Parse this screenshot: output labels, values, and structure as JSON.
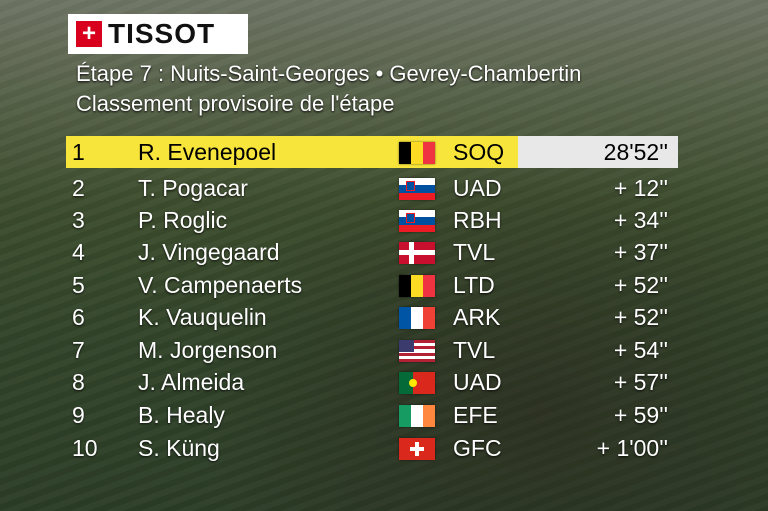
{
  "brand": {
    "logo_text": "TISSOT"
  },
  "stage": {
    "title": "Étape 7 : Nuits-Saint-Georges •  Gevrey-Chambertin",
    "subtitle": "Classement provisoire de l'étape"
  },
  "rows": [
    {
      "pos": "1",
      "name": "R. Evenepoel",
      "flag": "belgium-flag",
      "team": "SOQ",
      "time": "28'52''"
    },
    {
      "pos": "2",
      "name": "T. Pogacar",
      "flag": "slovenia-flag",
      "team": "UAD",
      "time": "+  12''"
    },
    {
      "pos": "3",
      "name": "P. Roglic",
      "flag": "slovenia-flag",
      "team": "RBH",
      "time": "+  34''"
    },
    {
      "pos": "4",
      "name": "J. Vingegaard",
      "flag": "denmark-flag",
      "team": "TVL",
      "time": "+  37''"
    },
    {
      "pos": "5",
      "name": "V. Campenaerts",
      "flag": "belgium-flag",
      "team": "LTD",
      "time": "+  52''"
    },
    {
      "pos": "6",
      "name": "K. Vauquelin",
      "flag": "france-flag",
      "team": "ARK",
      "time": "+  52''"
    },
    {
      "pos": "7",
      "name": "M. Jorgenson",
      "flag": "usa-flag",
      "team": "TVL",
      "time": "+  54''"
    },
    {
      "pos": "8",
      "name": "J. Almeida",
      "flag": "portugal-flag",
      "team": "UAD",
      "time": "+  57''"
    },
    {
      "pos": "9",
      "name": "B. Healy",
      "flag": "ireland-flag",
      "team": "EFE",
      "time": "+  59''"
    },
    {
      "pos": "10",
      "name": "S. Küng",
      "flag": "switzerland-flag",
      "team": "GFC",
      "time": "+ 1'00''"
    }
  ],
  "colors": {
    "leader_bar": "#f7e53b",
    "leader_time_bg": "#e8e8e8",
    "brand_red": "#d8001c"
  }
}
